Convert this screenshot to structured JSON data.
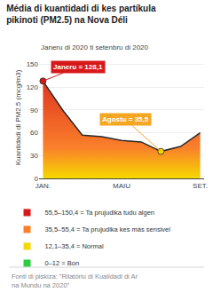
{
  "chart_data": {
    "type": "line",
    "title": "Média di kuantidadi di kes partíkula\npikinoti (PM2.5) na Nova Déli",
    "subtitle": "Janeru di 2020 ti setenbru di 2020",
    "y_label": "Kuantidadi di PM2.5 (mcg/m3)",
    "x": [
      0,
      1,
      2,
      3,
      4,
      5,
      6,
      7,
      8
    ],
    "values": [
      128.1,
      90,
      57,
      55,
      50,
      48,
      35.5,
      42,
      60
    ],
    "color": "#2a2a2a",
    "xlim": [
      -0.2,
      8.2
    ],
    "xticks": [
      {
        "value": 0,
        "label": "JAN."
      },
      {
        "value": 4,
        "label": "MAIU"
      },
      {
        "value": 8,
        "label": "SET."
      }
    ],
    "ylim": [
      0,
      160
    ],
    "yticks": [
      0,
      30,
      60,
      90,
      120,
      150
    ],
    "grid": true,
    "highlights": [
      {
        "x": 0,
        "y": 128.1,
        "label": "Janeru = 128,1",
        "color": "#d7191c",
        "box_color": "#d7191c"
      },
      {
        "x": 6,
        "y": 35.5,
        "label": "Agostu = 35,5",
        "color": "#f5d800",
        "box_color": "#f5a623"
      }
    ],
    "legend_items": [
      {
        "name": "55,5–150,4 = Ta prujudika tudu algen",
        "color": "#d7191c"
      },
      {
        "name": "35,5–55,4 = Ta prujudika kes más sensivel",
        "color": "#f97f2b"
      },
      {
        "name": "12,1–35,4 = Normal",
        "color": "#f5d800"
      },
      {
        "name": "0–12 = Bon",
        "color": "#2ecc40"
      }
    ],
    "footnote": "Fonti di piskiza: \"Rilatóriu di Kualidadi di Ar\nna Mundu na 2020\""
  }
}
